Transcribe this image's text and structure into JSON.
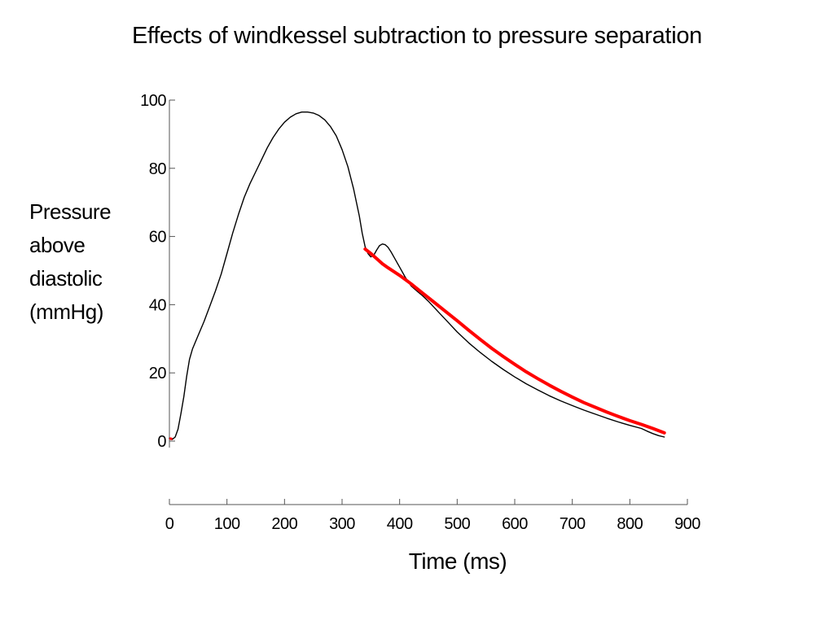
{
  "title": "Effects of windkessel subtraction to pressure separation",
  "chart_data": {
    "type": "line",
    "title": "Effects of windkessel subtraction to pressure separation",
    "xlabel": "Time (ms)",
    "ylabel_lines": [
      "Pressure",
      "above",
      "diastolic",
      "(mmHg)"
    ],
    "xlim": [
      0,
      900
    ],
    "ylim": [
      0,
      100
    ],
    "xticks": [
      0,
      100,
      200,
      300,
      400,
      500,
      600,
      700,
      800,
      900
    ],
    "yticks": [
      0,
      20,
      40,
      60,
      80,
      100
    ],
    "grid": false,
    "legend": "none",
    "series": [
      {
        "color": "#000000",
        "x": [
          0,
          5,
          10,
          15,
          20,
          25,
          30,
          35,
          40,
          50,
          60,
          70,
          80,
          90,
          100,
          110,
          120,
          130,
          140,
          150,
          160,
          170,
          180,
          190,
          200,
          210,
          220,
          230,
          240,
          250,
          260,
          270,
          280,
          290,
          300,
          310,
          320,
          330,
          335,
          340,
          345,
          350,
          355,
          360,
          365,
          370,
          375,
          380,
          385,
          390,
          400,
          410,
          420,
          430,
          440,
          450,
          460,
          470,
          480,
          500,
          520,
          540,
          560,
          580,
          600,
          620,
          640,
          660,
          680,
          700,
          720,
          740,
          760,
          780,
          800,
          820,
          830,
          840,
          850,
          860
        ],
        "y": [
          0.8,
          0.5,
          1.2,
          3.5,
          8,
          13,
          19,
          24,
          27,
          31,
          35,
          39.5,
          44,
          49,
          55,
          61,
          66.5,
          71.5,
          75.5,
          79,
          82.5,
          86,
          89,
          91.5,
          93.5,
          95,
          96,
          96.5,
          96.5,
          96.2,
          95.5,
          94.2,
          92.2,
          89.5,
          85.5,
          80.5,
          74,
          66,
          61,
          57,
          55,
          54,
          54.5,
          56,
          57.3,
          57.8,
          57.6,
          56.8,
          55.5,
          54,
          51,
          48,
          45.5,
          44,
          42.6,
          41,
          39.2,
          37.4,
          35.6,
          32,
          28.8,
          26,
          23.4,
          21,
          18.8,
          16.8,
          15,
          13.3,
          11.8,
          10.4,
          9.1,
          7.9,
          6.7,
          5.6,
          4.6,
          3.7,
          2.9,
          2.2,
          1.6,
          1.2
        ]
      },
      {
        "color": "#ff0000",
        "x": [
          340,
          350,
          360,
          370,
          380,
          400,
          420,
          440,
          460,
          480,
          500,
          520,
          540,
          560,
          580,
          600,
          620,
          640,
          660,
          680,
          700,
          720,
          740,
          760,
          780,
          800,
          820,
          840,
          860
        ],
        "y": [
          56.3,
          55,
          53.5,
          52,
          50.8,
          48.6,
          46.1,
          43.4,
          40.7,
          38,
          35.3,
          32.5,
          29.8,
          27.2,
          24.8,
          22.5,
          20.3,
          18.3,
          16.4,
          14.6,
          12.9,
          11.3,
          9.9,
          8.5,
          7.2,
          6,
          4.9,
          3.7,
          2.4
        ]
      }
    ]
  }
}
